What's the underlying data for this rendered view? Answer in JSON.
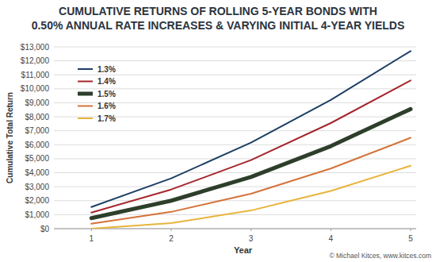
{
  "chart_data": {
    "type": "line",
    "title": "CUMULATIVE RETURNS OF ROLLING 5-YEAR BONDS WITH\n0.50% ANNUAL RATE INCREASES & VARYING INITIAL 4-YEAR YIELDS",
    "x_label": "Year",
    "y_label": "Cumulative Total Return",
    "annotations": [
      "© Michael Kitces, www.kitces.com"
    ],
    "x": [
      1,
      2,
      3,
      4,
      5
    ],
    "xlim": [
      0.53,
      5.07
    ],
    "xticks": [
      1,
      2,
      3,
      4,
      5
    ],
    "ylim": [
      0,
      13000
    ],
    "yticks": [
      {
        "value": 0,
        "label": "$0"
      },
      {
        "value": 1000,
        "label": "$1,000"
      },
      {
        "value": 2000,
        "label": "$2,000"
      },
      {
        "value": 3000,
        "label": "$3,000"
      },
      {
        "value": 4000,
        "label": "$4,000"
      },
      {
        "value": 5000,
        "label": "$5,000"
      },
      {
        "value": 6000,
        "label": "$6,000"
      },
      {
        "value": 7000,
        "label": "$7,000"
      },
      {
        "value": 8000,
        "label": "$8,000"
      },
      {
        "value": 9000,
        "label": "$9,000"
      },
      {
        "value": 10000,
        "label": "$10,000"
      },
      {
        "value": 11000,
        "label": "$11,000"
      },
      {
        "value": 12000,
        "label": "$12,000"
      },
      {
        "value": 13000,
        "label": "$13,000"
      }
    ],
    "grid": true,
    "legend": "upper left",
    "series": [
      {
        "name": "1.3%",
        "color": "#1d3f63",
        "line_style": "solid",
        "values": [
          1550,
          3600,
          6150,
          9200,
          12700
        ]
      },
      {
        "name": "1.4%",
        "color": "#a5262c",
        "line_style": "solid",
        "values": [
          1150,
          2800,
          4900,
          7550,
          10600
        ]
      },
      {
        "name": "1.5%",
        "color": "#2d3f2a",
        "line_style": "thick",
        "values": [
          750,
          2000,
          3700,
          5900,
          8550
        ]
      },
      {
        "name": "1.6%",
        "color": "#d4733b",
        "line_style": "solid",
        "values": [
          350,
          1200,
          2500,
          4300,
          6500
        ]
      },
      {
        "name": "1.7%",
        "color": "#e9b43c",
        "line_style": "solid",
        "values": [
          0,
          400,
          1300,
          2700,
          4500
        ]
      }
    ]
  }
}
